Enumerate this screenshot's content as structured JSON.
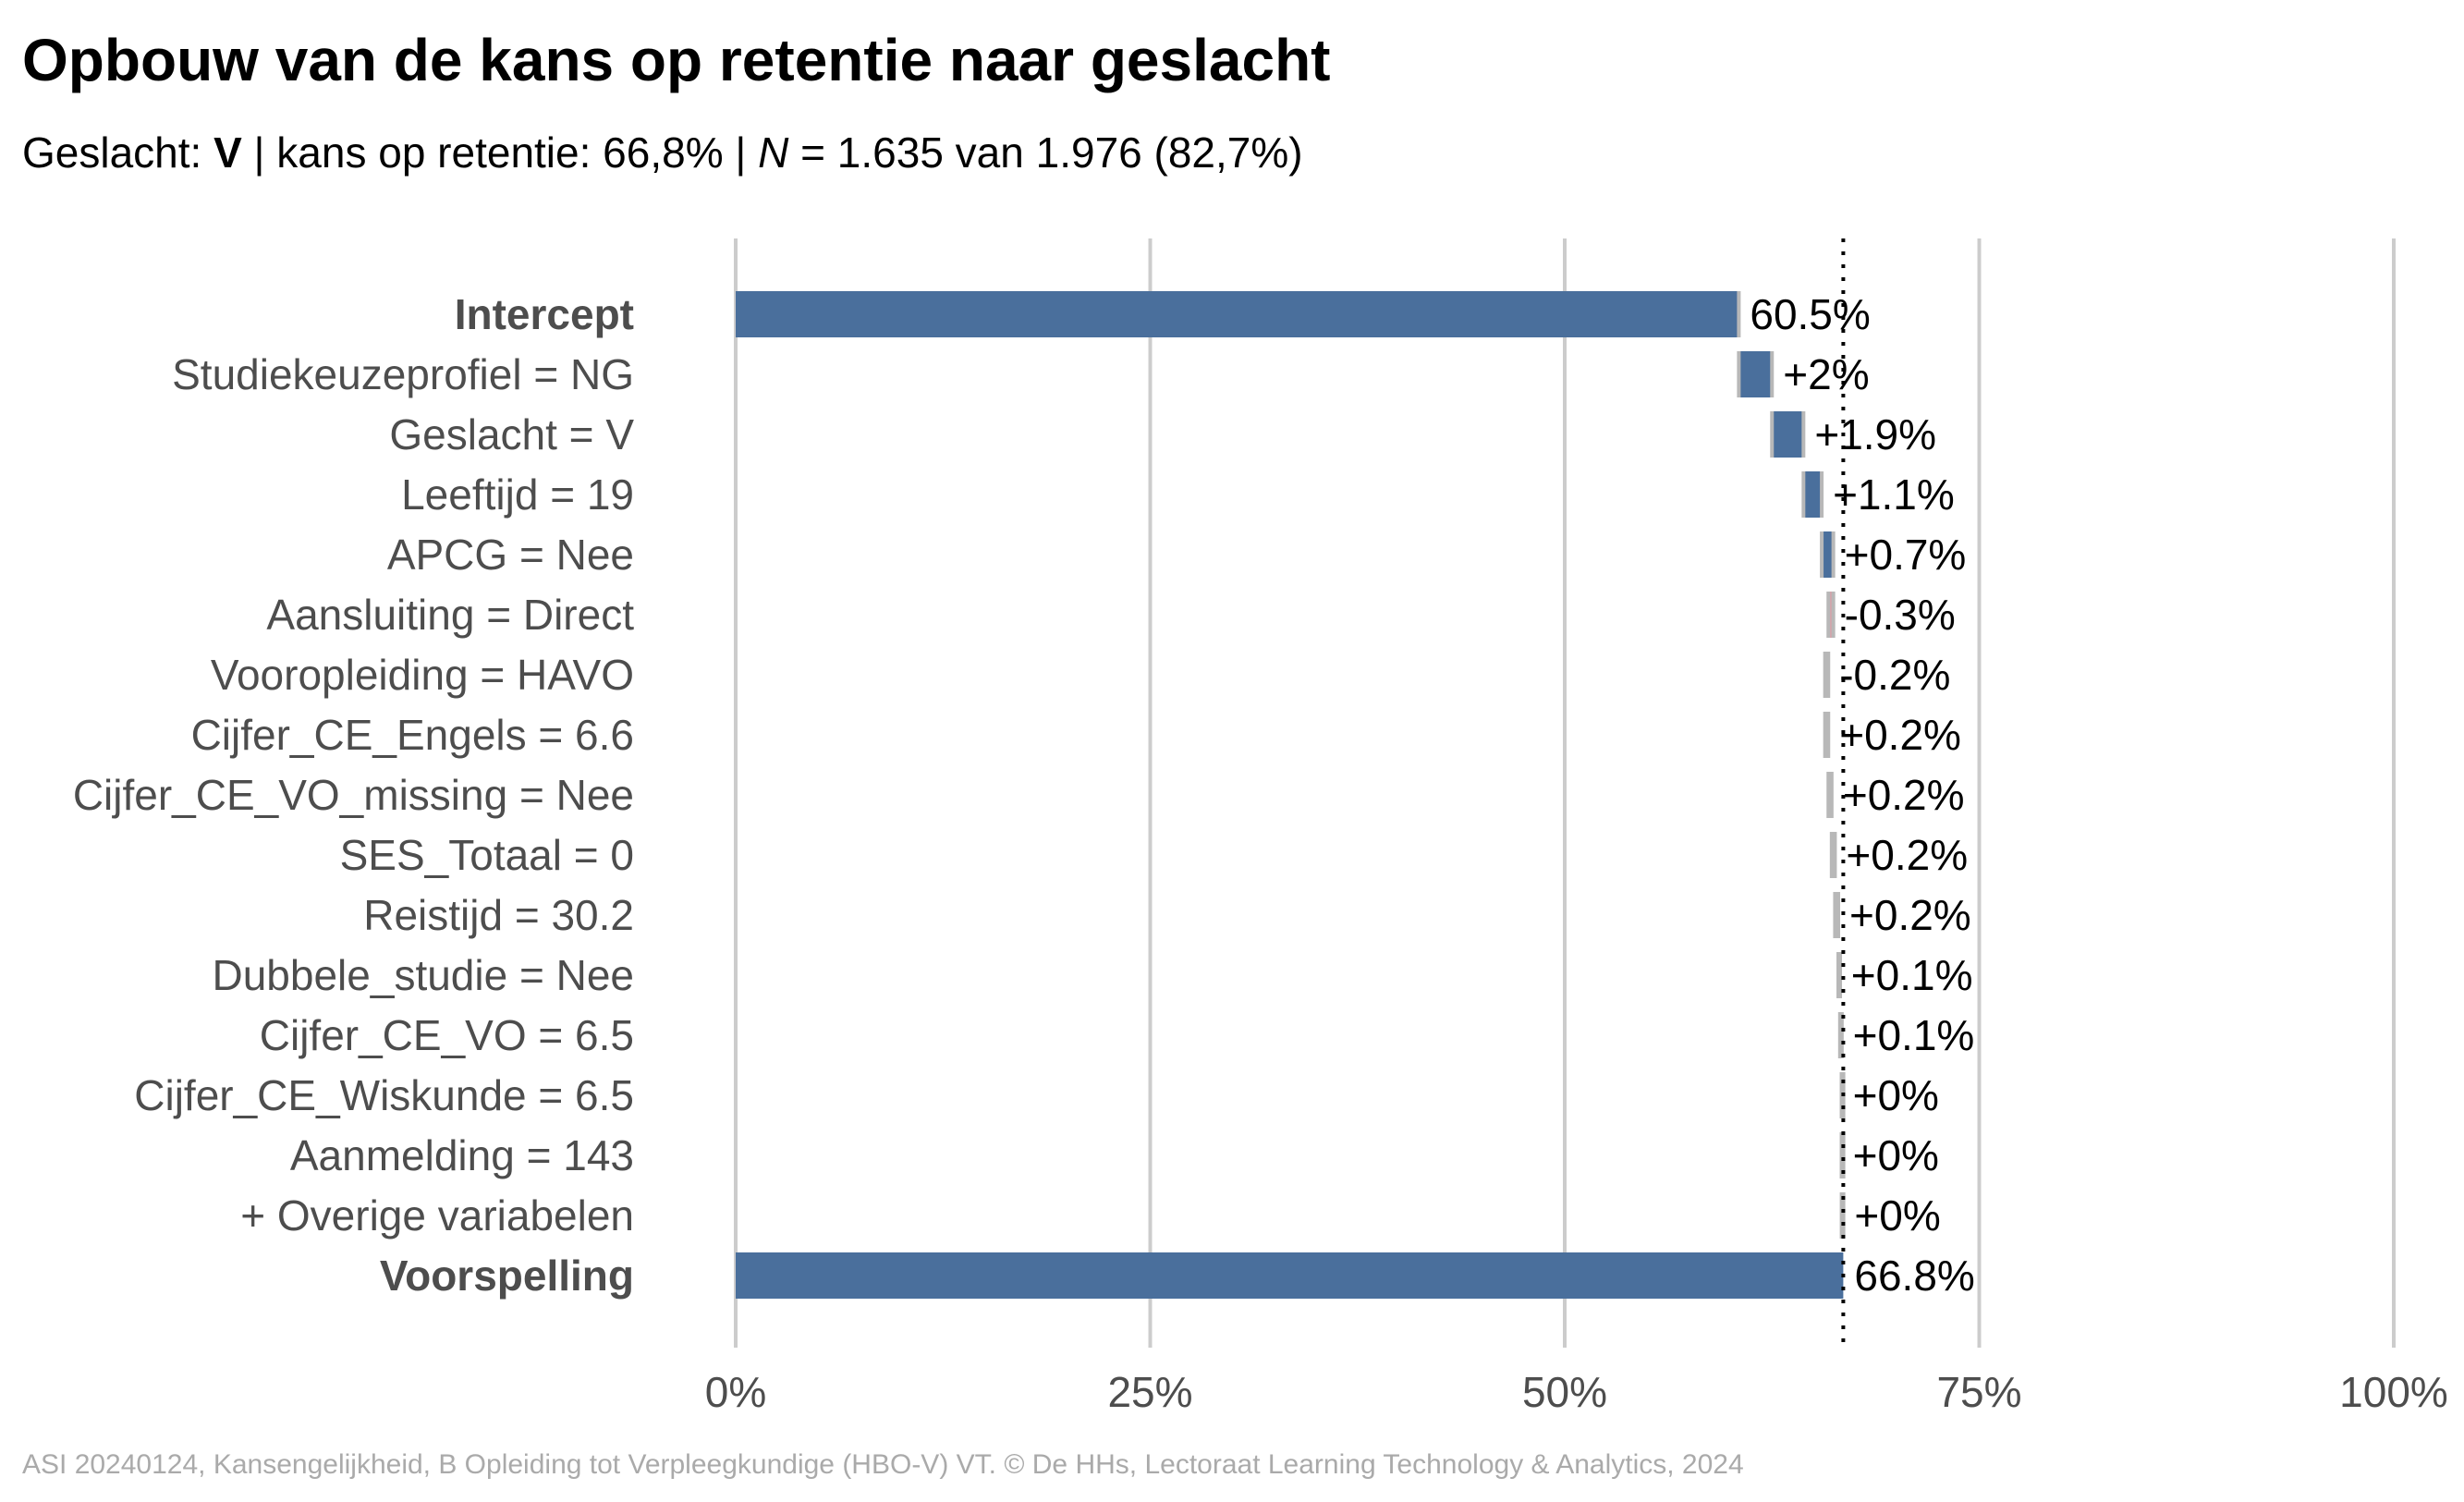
{
  "title": "Opbouw van de kans op retentie naar geslacht",
  "subtitle": {
    "prefix": "Geslacht: ",
    "group": "V",
    "middle": " | kans op retentie: 66,8% | ",
    "n_label": "N",
    "suffix": " = 1.635 van 1.976 (82,7%)"
  },
  "caption": "ASI 20240124, Kansengelijkheid, B Opleiding tot Verpleegkundige (HBO-V) VT. © De HHs, Lectoraat Learning Technology & Analytics, 2024",
  "colors": {
    "positive": "#4a6f9c",
    "negative": "#d9a0a8",
    "neutral": "#b8b8b8",
    "grid": "#cccccc",
    "label": "#4d4d4d",
    "text": "#000000"
  },
  "chart_data": {
    "type": "bar",
    "orientation": "horizontal-waterfall",
    "xlim": [
      0,
      100
    ],
    "x_ticks": [
      0,
      25,
      50,
      75,
      100
    ],
    "x_tick_labels": [
      "0%",
      "25%",
      "50%",
      "75%",
      "100%"
    ],
    "reference_line": 66.8,
    "grid": true,
    "categories": [
      "Intercept",
      "Studiekeuzeprofiel = NG",
      "Geslacht = V",
      "Leeftijd = 19",
      "APCG = Nee",
      "Aansluiting = Direct",
      "Vooropleiding = HAVO",
      "Cijfer_CE_Engels = 6.6",
      "Cijfer_CE_VO_missing = Nee",
      "SES_Totaal = 0",
      "Reistijd = 30.2",
      "Dubbele_studie = Nee",
      "Cijfer_CE_VO = 6.5",
      "Cijfer_CE_Wiskunde = 6.5",
      "Aanmelding = 143",
      "+ Overige variabelen",
      "Voorspelling"
    ],
    "bold_categories": [
      "Intercept",
      "Voorspelling"
    ],
    "start": [
      0,
      60.5,
      62.5,
      64.4,
      65.5,
      66.2,
      65.9,
      65.7,
      65.9,
      66.1,
      66.3,
      66.5,
      66.6,
      66.7,
      66.7,
      66.7,
      0
    ],
    "end": [
      60.5,
      62.5,
      64.4,
      65.5,
      66.2,
      65.9,
      65.7,
      65.9,
      66.1,
      66.3,
      66.5,
      66.6,
      66.7,
      66.7,
      66.7,
      66.8,
      66.8
    ],
    "kind": [
      "total",
      "pos",
      "pos",
      "pos",
      "pos",
      "neg",
      "neutral",
      "neutral",
      "neutral",
      "neutral",
      "neutral",
      "neutral",
      "neutral",
      "neutral",
      "neutral",
      "neutral",
      "total"
    ],
    "data_labels": [
      "60.5%",
      "+2%",
      "+1.9%",
      "+1.1%",
      "+0.7%",
      "-0.3%",
      "-0.2%",
      "+0.2%",
      "+0.2%",
      "+0.2%",
      "+0.2%",
      "+0.1%",
      "+0.1%",
      "+0%",
      "+0%",
      "+0%",
      "66.8%"
    ]
  }
}
